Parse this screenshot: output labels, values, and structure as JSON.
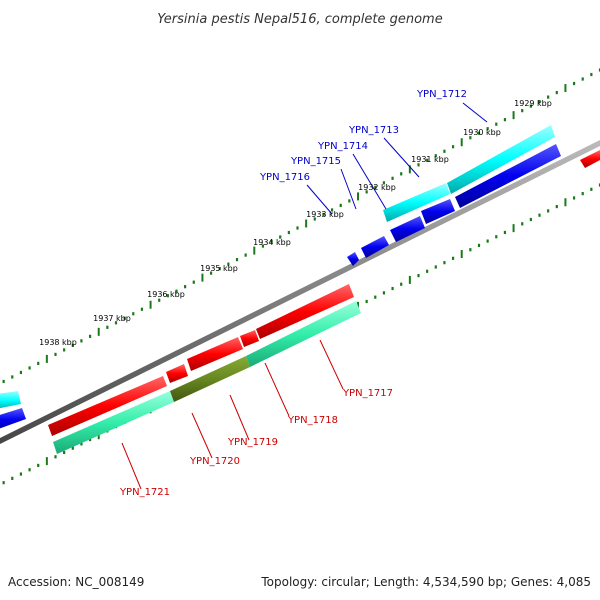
{
  "title": "Yersinia pestis Nepal516, complete genome",
  "footer": {
    "accession": "Accession: NC_008149",
    "topology": "Topology: circular; Length: 4,534,590 bp; Genes: 4,085"
  },
  "colors": {
    "forward_cds": "#ff0000",
    "reverse_cds": "#0000ff",
    "forward_gene": "#33eeaa",
    "reverse_gene": "#00ffff",
    "highlight_gene": "#668822",
    "backbone": "#808080",
    "ticks": "#1a7a1a",
    "label_forward": "#cc0000",
    "label_reverse": "#0000cc"
  },
  "scale_labels": [
    "1929 kbp",
    "1930 kbp",
    "1931 kbp",
    "1932 kbp",
    "1933 kbp",
    "1934 kbp",
    "1935 kbp",
    "1936 kbp",
    "1937 kbp",
    "1938 kbp"
  ],
  "reverse_gene_labels": [
    "YPN_1712",
    "YPN_1713",
    "YPN_1714",
    "YPN_1715",
    "YPN_1716"
  ],
  "forward_gene_labels": [
    "YPN_1717",
    "YPN_1718",
    "YPN_1719",
    "YPN_1720",
    "YPN_1721"
  ]
}
